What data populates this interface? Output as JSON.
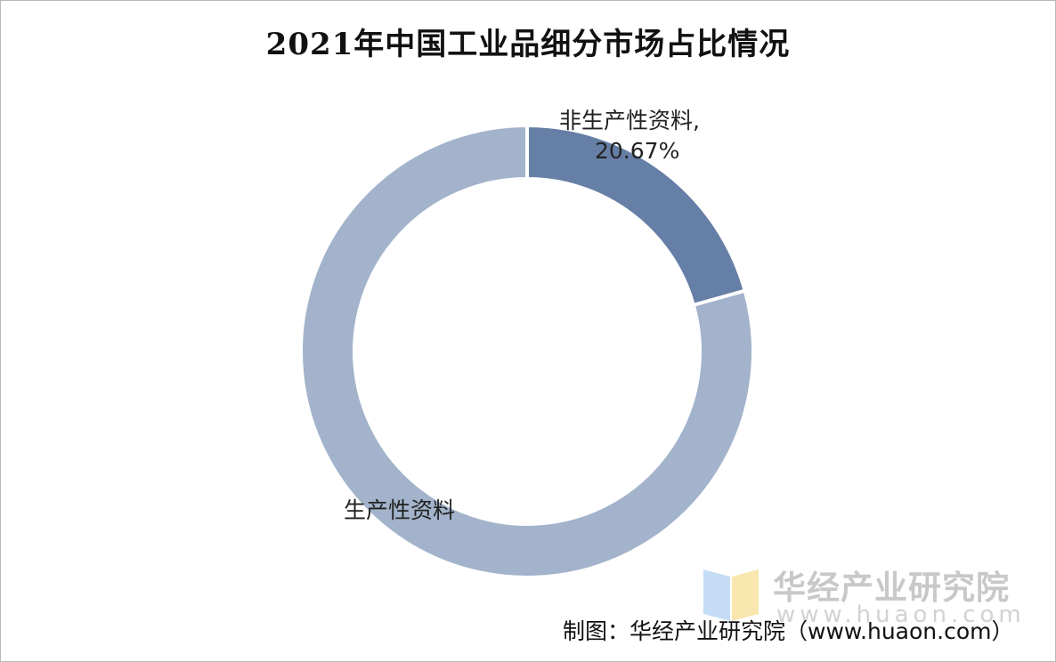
{
  "chart_data": {
    "type": "pie",
    "title": "2021年中国工业品细分市场占比情况",
    "slices": [
      {
        "name": "非生产性资料",
        "value": 20.67,
        "label_line1": "非生产性资料,",
        "label_line2": "20.67%",
        "color": "#667fa6"
      },
      {
        "name": "生产性资料",
        "value": 79.33,
        "label_line1": "生产性资料",
        "label_line2": "",
        "color": "#a2b3cb"
      }
    ]
  },
  "watermark": {
    "text": "华经产业研究院",
    "url": "www.huaon.com",
    "logo_colors": [
      "#f5d77a",
      "#9ec7ec"
    ]
  },
  "source": "制图：华经产业研究院（www.huaon.com）"
}
